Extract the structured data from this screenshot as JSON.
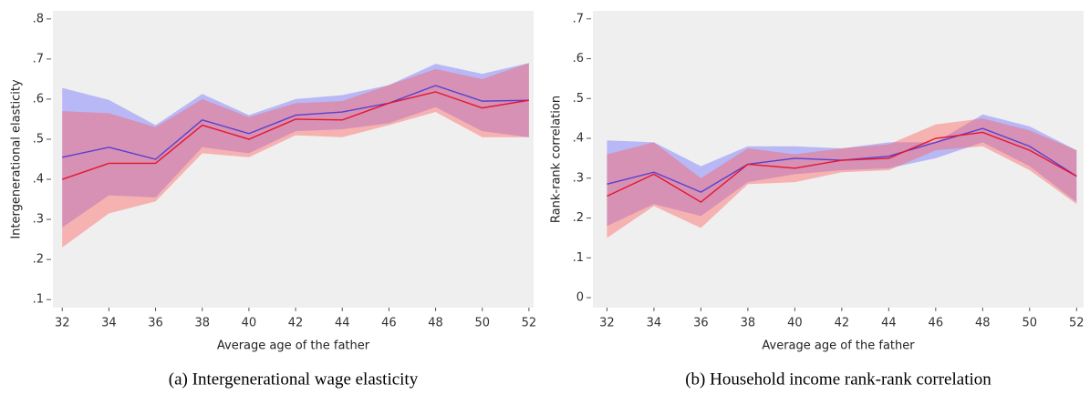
{
  "chart_data": [
    {
      "type": "line",
      "caption": "(a) Intergenerational wage elasticity",
      "x_label": "Average age of the father",
      "y_label": "Intergenerational elasticity",
      "x": [
        32,
        34,
        36,
        38,
        40,
        42,
        44,
        46,
        48,
        50,
        52
      ],
      "xlim": [
        31.6,
        52.2
      ],
      "xticks": [
        32,
        34,
        36,
        38,
        40,
        42,
        44,
        46,
        48,
        50,
        52
      ],
      "ylim": [
        0.08,
        0.82
      ],
      "yticks": [
        {
          "value": 0.1,
          "label": ".1"
        },
        {
          "value": 0.2,
          "label": ".2"
        },
        {
          "value": 0.3,
          "label": ".3"
        },
        {
          "value": 0.4,
          "label": ".4"
        },
        {
          "value": 0.5,
          "label": ".5"
        },
        {
          "value": 0.6,
          "label": ".6"
        },
        {
          "value": 0.7,
          "label": ".7"
        },
        {
          "value": 0.8,
          "label": ".8"
        }
      ],
      "grid": false,
      "series": [
        {
          "color": "#5a3fd0",
          "band_color": "#6b6bff",
          "values": [
            0.455,
            0.48,
            0.45,
            0.548,
            0.514,
            0.56,
            0.568,
            0.59,
            0.634,
            0.595,
            0.597
          ],
          "upper": [
            0.628,
            0.598,
            0.535,
            0.613,
            0.56,
            0.6,
            0.61,
            0.635,
            0.688,
            0.663,
            0.69
          ],
          "lower": [
            0.28,
            0.36,
            0.355,
            0.48,
            0.465,
            0.52,
            0.525,
            0.54,
            0.58,
            0.52,
            0.505
          ]
        },
        {
          "color": "#e8142c",
          "band_color": "#ff5a5a",
          "values": [
            0.4,
            0.44,
            0.44,
            0.535,
            0.5,
            0.55,
            0.548,
            0.59,
            0.618,
            0.578,
            0.597
          ],
          "upper": [
            0.57,
            0.565,
            0.53,
            0.6,
            0.555,
            0.59,
            0.595,
            0.635,
            0.675,
            0.65,
            0.69
          ],
          "lower": [
            0.23,
            0.315,
            0.345,
            0.465,
            0.455,
            0.51,
            0.505,
            0.535,
            0.568,
            0.505,
            0.505
          ]
        }
      ]
    },
    {
      "type": "line",
      "caption": "(b) Household income rank-rank correlation",
      "x_label": "Average age of the father",
      "y_label": "Rank-rank correlation",
      "x": [
        32,
        34,
        36,
        38,
        40,
        42,
        44,
        46,
        48,
        50,
        52
      ],
      "xlim": [
        31.4,
        52.3
      ],
      "xticks": [
        32,
        34,
        36,
        38,
        40,
        42,
        44,
        46,
        48,
        50,
        52
      ],
      "ylim": [
        -0.025,
        0.72
      ],
      "yticks": [
        0,
        {
          "value": 0.1,
          "label": ".1"
        },
        {
          "value": 0.2,
          "label": ".2"
        },
        {
          "value": 0.3,
          "label": ".3"
        },
        {
          "value": 0.4,
          "label": ".4"
        },
        {
          "value": 0.5,
          "label": ".5"
        },
        {
          "value": 0.6,
          "label": ".6"
        },
        {
          "value": 0.7,
          "label": ".7"
        }
      ],
      "grid": false,
      "series": [
        {
          "color": "#5a3fd0",
          "band_color": "#6b6bff",
          "values": [
            0.285,
            0.315,
            0.265,
            0.335,
            0.35,
            0.345,
            0.355,
            0.39,
            0.425,
            0.38,
            0.305
          ],
          "upper": [
            0.395,
            0.39,
            0.33,
            0.38,
            0.38,
            0.375,
            0.39,
            0.39,
            0.46,
            0.43,
            0.37
          ],
          "lower": [
            0.18,
            0.235,
            0.205,
            0.29,
            0.31,
            0.32,
            0.325,
            0.35,
            0.39,
            0.33,
            0.24
          ]
        },
        {
          "color": "#e8142c",
          "band_color": "#ff5a5a",
          "values": [
            0.255,
            0.31,
            0.24,
            0.335,
            0.325,
            0.345,
            0.35,
            0.4,
            0.415,
            0.37,
            0.305
          ],
          "upper": [
            0.36,
            0.39,
            0.3,
            0.375,
            0.36,
            0.375,
            0.385,
            0.435,
            0.45,
            0.42,
            0.37
          ],
          "lower": [
            0.15,
            0.23,
            0.175,
            0.285,
            0.29,
            0.315,
            0.32,
            0.37,
            0.38,
            0.32,
            0.235
          ]
        }
      ]
    }
  ]
}
